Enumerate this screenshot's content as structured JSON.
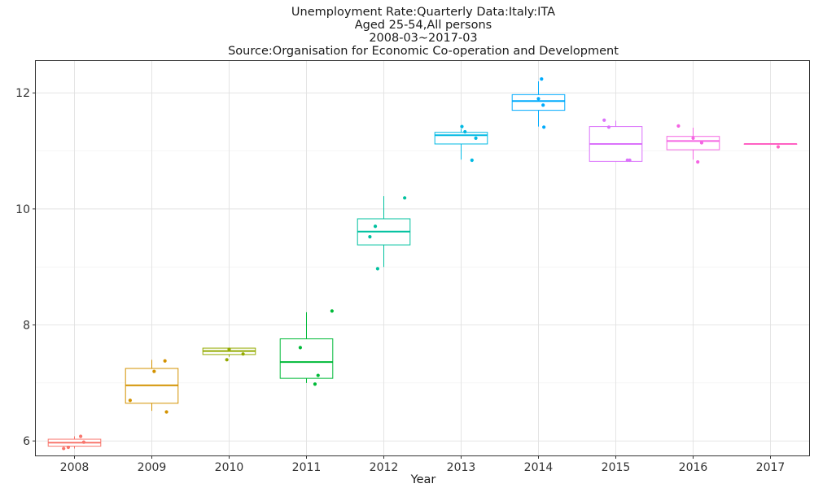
{
  "chart_data": {
    "type": "box",
    "title_lines": [
      "Unemployment Rate:Quarterly Data:Italy:ITA",
      "Aged 25-54,All persons",
      "2008-03~2017-03",
      "Source:Organisation for Economic Co-operation and Development"
    ],
    "xlabel": "Year",
    "ylabel": "",
    "ylim": [
      5.75,
      12.55
    ],
    "yticks": [
      6,
      8,
      10,
      12
    ],
    "grid": true,
    "legend": "none",
    "categories": [
      "2008",
      "2009",
      "2010",
      "2011",
      "2012",
      "2013",
      "2014",
      "2015",
      "2016",
      "2017"
    ],
    "colors": [
      "#F8766D",
      "#D39200",
      "#93AA00",
      "#00BA38",
      "#00C19F",
      "#00B9E3",
      "#00ABFD",
      "#DB72FB",
      "#F564E3",
      "#FF61C3"
    ],
    "boxes": [
      {
        "min": 5.87,
        "q1": 5.91,
        "median": 5.97,
        "q3": 6.03,
        "max": 6.08
      },
      {
        "min": 6.52,
        "q1": 6.65,
        "median": 6.96,
        "q3": 7.25,
        "max": 7.4
      },
      {
        "min": 7.45,
        "q1": 7.49,
        "median": 7.55,
        "q3": 7.6,
        "max": 7.6
      },
      {
        "min": 7.0,
        "q1": 7.08,
        "median": 7.36,
        "q3": 7.76,
        "max": 8.22
      },
      {
        "min": 9.0,
        "q1": 9.38,
        "median": 9.61,
        "q3": 9.83,
        "max": 10.22
      },
      {
        "min": 10.85,
        "q1": 11.12,
        "median": 11.27,
        "q3": 11.32,
        "max": 11.38
      },
      {
        "min": 11.42,
        "q1": 11.7,
        "median": 11.86,
        "q3": 11.97,
        "max": 12.2
      },
      {
        "min": 10.82,
        "q1": 10.82,
        "median": 11.12,
        "q3": 11.42,
        "max": 11.52
      },
      {
        "min": 10.85,
        "q1": 11.02,
        "median": 11.17,
        "q3": 11.25,
        "max": 11.4
      },
      {
        "min": 11.12,
        "q1": 11.12,
        "median": 11.12,
        "q3": 11.12,
        "max": 11.12
      }
    ],
    "points": [
      {
        "x": "2008",
        "jitter": -0.14,
        "y": 5.87
      },
      {
        "x": "2008",
        "jitter": -0.08,
        "y": 5.89
      },
      {
        "x": "2008",
        "jitter": 0.08,
        "y": 6.08
      },
      {
        "x": "2008",
        "jitter": 0.12,
        "y": 5.98
      },
      {
        "x": "2009",
        "jitter": -0.28,
        "y": 6.7
      },
      {
        "x": "2009",
        "jitter": 0.03,
        "y": 7.2
      },
      {
        "x": "2009",
        "jitter": 0.17,
        "y": 7.38
      },
      {
        "x": "2009",
        "jitter": 0.19,
        "y": 6.5
      },
      {
        "x": "2010",
        "jitter": 0.0,
        "y": 7.58
      },
      {
        "x": "2010",
        "jitter": -0.03,
        "y": 7.4
      },
      {
        "x": "2010",
        "jitter": 0.18,
        "y": 7.5
      },
      {
        "x": "2011",
        "jitter": -0.08,
        "y": 7.61
      },
      {
        "x": "2011",
        "jitter": 0.11,
        "y": 6.98
      },
      {
        "x": "2011",
        "jitter": 0.15,
        "y": 7.13
      },
      {
        "x": "2011",
        "jitter": 0.33,
        "y": 8.24
      },
      {
        "x": "2012",
        "jitter": -0.18,
        "y": 9.52
      },
      {
        "x": "2012",
        "jitter": -0.11,
        "y": 9.7
      },
      {
        "x": "2012",
        "jitter": -0.08,
        "y": 8.97
      },
      {
        "x": "2012",
        "jitter": 0.27,
        "y": 10.19
      },
      {
        "x": "2013",
        "jitter": 0.01,
        "y": 11.42
      },
      {
        "x": "2013",
        "jitter": 0.05,
        "y": 11.33
      },
      {
        "x": "2013",
        "jitter": 0.14,
        "y": 10.84
      },
      {
        "x": "2013",
        "jitter": 0.19,
        "y": 11.22
      },
      {
        "x": "2014",
        "jitter": 0.0,
        "y": 11.9
      },
      {
        "x": "2014",
        "jitter": 0.04,
        "y": 12.24
      },
      {
        "x": "2014",
        "jitter": 0.06,
        "y": 11.79
      },
      {
        "x": "2014",
        "jitter": 0.07,
        "y": 11.41
      },
      {
        "x": "2015",
        "jitter": -0.15,
        "y": 11.53
      },
      {
        "x": "2015",
        "jitter": -0.09,
        "y": 11.41
      },
      {
        "x": "2015",
        "jitter": 0.15,
        "y": 10.84
      },
      {
        "x": "2015",
        "jitter": 0.18,
        "y": 10.84
      },
      {
        "x": "2016",
        "jitter": -0.19,
        "y": 11.43
      },
      {
        "x": "2016",
        "jitter": 0.0,
        "y": 11.22
      },
      {
        "x": "2016",
        "jitter": 0.06,
        "y": 10.81
      },
      {
        "x": "2016",
        "jitter": 0.11,
        "y": 11.14
      },
      {
        "x": "2017",
        "jitter": 0.1,
        "y": 11.07
      }
    ]
  }
}
